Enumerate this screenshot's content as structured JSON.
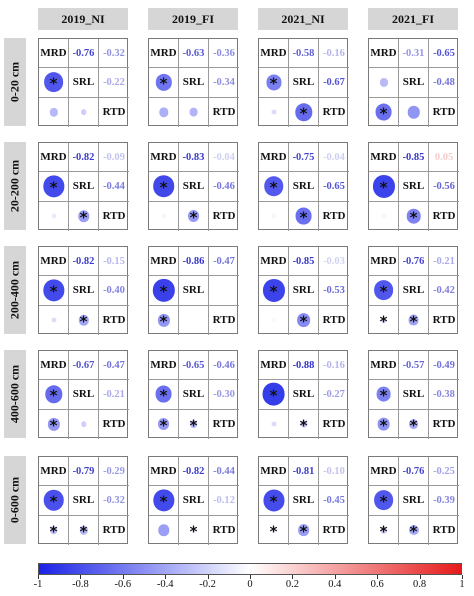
{
  "chart_data": {
    "type": "heatmap",
    "kind": "correlation-matrix-grid",
    "columns": [
      "2019_NI",
      "2019_FI",
      "2021_NI",
      "2021_FI"
    ],
    "rows": [
      "0-20 cm",
      "20-200 cm",
      "200-400 cm",
      "400-600 cm",
      "0-600 cm"
    ],
    "variables": [
      "MRD",
      "SRL",
      "RTD"
    ],
    "colorbar": {
      "ticks": [
        "-1",
        "-0.8",
        "-0.6",
        "-0.4",
        "-0.2",
        "0",
        "0.2",
        "0.4",
        "0.6",
        "0.8",
        "1"
      ],
      "range": [
        -1,
        1
      ],
      "colors": {
        "neg": "#1a22e6",
        "mid": "#ffffff",
        "pos": "#e61a1a"
      }
    },
    "panels": [
      [
        {
          "mrd_srl": -0.76,
          "mrd_rtd": -0.32,
          "srl_rtd": -0.22,
          "mrd_srl_txt": "-0.76",
          "mrd_rtd_txt": "-0.32",
          "srl_rtd_txt": "-0.22",
          "sig": [
            true,
            false,
            false
          ]
        },
        {
          "mrd_srl": -0.63,
          "mrd_rtd": -0.36,
          "srl_rtd": -0.34,
          "mrd_srl_txt": "-0.63",
          "mrd_rtd_txt": "-0.36",
          "srl_rtd_txt": "-0.34",
          "sig": [
            true,
            false,
            false
          ]
        },
        {
          "mrd_srl": -0.58,
          "mrd_rtd": -0.16,
          "srl_rtd": -0.67,
          "mrd_srl_txt": "-0.58",
          "mrd_rtd_txt": "-0.16",
          "srl_rtd_txt": "-0.67",
          "sig": [
            true,
            false,
            true
          ]
        },
        {
          "mrd_srl": -0.31,
          "mrd_rtd": -0.65,
          "srl_rtd": -0.48,
          "mrd_srl_txt": "-0.31",
          "mrd_rtd_txt": "-0.65",
          "srl_rtd_txt": "-0.48",
          "sig": [
            false,
            true,
            false
          ]
        }
      ],
      [
        {
          "mrd_srl": -0.82,
          "mrd_rtd": -0.09,
          "srl_rtd": -0.44,
          "mrd_srl_txt": "-0.82",
          "mrd_rtd_txt": "-0.09",
          "srl_rtd_txt": "-0.44",
          "sig": [
            true,
            false,
            true
          ]
        },
        {
          "mrd_srl": -0.83,
          "mrd_rtd": -0.04,
          "srl_rtd": -0.46,
          "mrd_srl_txt": "-0.83",
          "mrd_rtd_txt": "-0.04",
          "srl_rtd_txt": "-0.46",
          "sig": [
            true,
            false,
            true
          ]
        },
        {
          "mrd_srl": -0.75,
          "mrd_rtd": -0.04,
          "srl_rtd": -0.65,
          "mrd_srl_txt": "-0.75",
          "mrd_rtd_txt": "-0.04",
          "srl_rtd_txt": "-0.65",
          "sig": [
            true,
            false,
            true
          ]
        },
        {
          "mrd_srl": -0.85,
          "mrd_rtd": 0.05,
          "srl_rtd": -0.56,
          "mrd_srl_txt": "-0.85",
          "mrd_rtd_txt": "0.05",
          "srl_rtd_txt": "-0.56",
          "sig": [
            true,
            false,
            true
          ]
        }
      ],
      [
        {
          "mrd_srl": -0.82,
          "mrd_rtd": -0.15,
          "srl_rtd": -0.4,
          "mrd_srl_txt": "-0.82",
          "mrd_rtd_txt": "-0.15",
          "srl_rtd_txt": "-0.40",
          "sig": [
            true,
            false,
            true
          ]
        },
        {
          "mrd_srl": -0.86,
          "mrd_rtd": -0.47,
          "srl_rtd": 0.0,
          "mrd_srl_txt": "-0.86",
          "mrd_rtd_txt": "-0.47",
          "srl_rtd_txt": "",
          "sig": [
            true,
            true,
            false
          ]
        },
        {
          "mrd_srl": -0.85,
          "mrd_rtd": -0.03,
          "srl_rtd": -0.53,
          "mrd_srl_txt": "-0.85",
          "mrd_rtd_txt": "-0.03",
          "srl_rtd_txt": "-0.53",
          "sig": [
            true,
            false,
            true
          ]
        },
        {
          "mrd_srl": -0.76,
          "mrd_rtd": -0.21,
          "srl_rtd": -0.42,
          "mrd_srl_txt": "-0.76",
          "mrd_rtd_txt": "-0.21",
          "srl_rtd_txt": "-0.42",
          "sig": [
            true,
            true,
            true
          ]
        }
      ],
      [
        {
          "mrd_srl": -0.67,
          "mrd_rtd": -0.47,
          "srl_rtd": -0.21,
          "mrd_srl_txt": "-0.67",
          "mrd_rtd_txt": "-0.47",
          "srl_rtd_txt": "-0.21",
          "sig": [
            true,
            true,
            false
          ]
        },
        {
          "mrd_srl": -0.65,
          "mrd_rtd": -0.46,
          "srl_rtd": -0.3,
          "mrd_srl_txt": "-0.65",
          "mrd_rtd_txt": "-0.46",
          "srl_rtd_txt": "-0.30",
          "sig": [
            true,
            true,
            true
          ]
        },
        {
          "mrd_srl": -0.88,
          "mrd_rtd": -0.16,
          "srl_rtd": -0.27,
          "mrd_srl_txt": "-0.88",
          "mrd_rtd_txt": "-0.16",
          "srl_rtd_txt": "-0.27",
          "sig": [
            true,
            false,
            true
          ]
        },
        {
          "mrd_srl": -0.57,
          "mrd_rtd": -0.49,
          "srl_rtd": -0.38,
          "mrd_srl_txt": "-0.57",
          "mrd_rtd_txt": "-0.49",
          "srl_rtd_txt": "-0.38",
          "sig": [
            true,
            true,
            true
          ]
        }
      ],
      [
        {
          "mrd_srl": -0.79,
          "mrd_rtd": -0.29,
          "srl_rtd": -0.32,
          "mrd_srl_txt": "-0.79",
          "mrd_rtd_txt": "-0.29",
          "srl_rtd_txt": "-0.32",
          "sig": [
            true,
            true,
            true
          ]
        },
        {
          "mrd_srl": -0.82,
          "mrd_rtd": -0.44,
          "srl_rtd": -0.12,
          "mrd_srl_txt": "-0.82",
          "mrd_rtd_txt": "-0.44",
          "srl_rtd_txt": "-0.12",
          "sig": [
            true,
            false,
            true
          ]
        },
        {
          "mrd_srl": -0.81,
          "mrd_rtd": -0.1,
          "srl_rtd": -0.45,
          "mrd_srl_txt": "-0.81",
          "mrd_rtd_txt": "-0.10",
          "srl_rtd_txt": "-0.45",
          "sig": [
            true,
            true,
            true
          ]
        },
        {
          "mrd_srl": -0.76,
          "mrd_rtd": -0.25,
          "srl_rtd": -0.39,
          "mrd_srl_txt": "-0.76",
          "mrd_rtd_txt": "-0.25",
          "srl_rtd_txt": "-0.39",
          "sig": [
            true,
            true,
            true
          ]
        }
      ]
    ]
  }
}
